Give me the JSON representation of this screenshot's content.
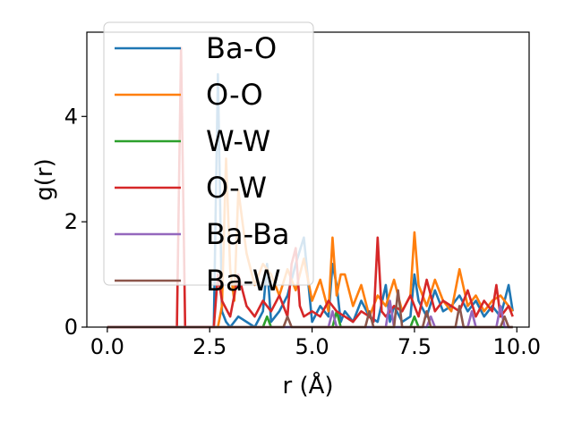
{
  "chart_data": {
    "type": "line",
    "title": "",
    "xlabel": "r (Å)",
    "ylabel": "g(r)",
    "xlim": [
      -0.5,
      10.3
    ],
    "ylim": [
      0,
      5.6
    ],
    "xticks": [
      "0.0",
      "2.5",
      "5.0",
      "7.5",
      "10.0"
    ],
    "xtick_values": [
      0,
      2.5,
      5,
      7.5,
      10
    ],
    "yticks": [
      "0",
      "2",
      "4"
    ],
    "ytick_values": [
      0,
      2,
      4
    ],
    "grid": false,
    "legend_position": "upper-left",
    "series": [
      {
        "name": "Ba-O",
        "color": "#1f77b4",
        "x": [
          0,
          2.5,
          2.6,
          2.7,
          2.8,
          2.9,
          3.0,
          3.2,
          3.4,
          3.6,
          3.8,
          3.9,
          4.0,
          4.1,
          4.2,
          4.4,
          4.6,
          4.8,
          5.0,
          5.2,
          5.4,
          5.5,
          5.6,
          5.7,
          5.8,
          6.0,
          6.2,
          6.4,
          6.6,
          6.8,
          6.9,
          7.0,
          7.2,
          7.4,
          7.5,
          7.6,
          7.8,
          8.0,
          8.2,
          8.4,
          8.6,
          8.8,
          9.0,
          9.2,
          9.4,
          9.6,
          9.8,
          9.9
        ],
        "y": [
          0,
          0,
          0,
          4.8,
          0.3,
          0.1,
          0,
          0.2,
          0.1,
          0,
          0.3,
          1.2,
          0.1,
          0.2,
          0.3,
          0.6,
          1.2,
          1.7,
          0.1,
          0.4,
          0.2,
          1.2,
          0.8,
          0.1,
          0.3,
          0.1,
          0.5,
          0.2,
          0.1,
          0.8,
          0.1,
          0.4,
          0.1,
          0.2,
          1.0,
          0.5,
          0.2,
          0.7,
          0.3,
          0.4,
          0.6,
          0.3,
          0.5,
          0.2,
          0.4,
          0.2,
          0.8,
          0.3
        ]
      },
      {
        "name": "O-O",
        "color": "#ff7f0e",
        "x": [
          0,
          2.7,
          2.8,
          2.9,
          3.0,
          3.1,
          3.2,
          3.4,
          3.6,
          3.8,
          4.0,
          4.2,
          4.4,
          4.6,
          4.8,
          5.0,
          5.2,
          5.4,
          5.5,
          5.6,
          5.7,
          5.8,
          6.0,
          6.2,
          6.4,
          6.6,
          6.8,
          7.0,
          7.2,
          7.4,
          7.5,
          7.6,
          7.8,
          8.0,
          8.2,
          8.4,
          8.6,
          8.8,
          9.0,
          9.2,
          9.4,
          9.6,
          9.8,
          9.9
        ],
        "y": [
          0,
          0,
          0.4,
          3.2,
          1.1,
          0.5,
          2.6,
          1.4,
          0.8,
          1.2,
          1.0,
          0.6,
          1.1,
          0.7,
          1.3,
          0.5,
          0.9,
          0.3,
          1.7,
          0.6,
          1.0,
          1.0,
          0.4,
          0.8,
          0.2,
          0.6,
          0.4,
          0.9,
          0.3,
          0.6,
          1.8,
          0.8,
          0.4,
          0.9,
          0.5,
          0.3,
          1.1,
          0.4,
          0.6,
          0.3,
          0.5,
          0.6,
          0.4,
          0.3
        ]
      },
      {
        "name": "W-W",
        "color": "#2ca02c",
        "x": [
          0,
          3.8,
          3.9,
          4.0,
          5.5,
          5.6,
          5.7,
          7.4,
          7.5,
          7.6,
          9.9
        ],
        "y": [
          0,
          0,
          0.2,
          0,
          0,
          0.3,
          0,
          0,
          0.2,
          0,
          0
        ]
      },
      {
        "name": "O-W",
        "color": "#d62728",
        "x": [
          0,
          1.7,
          1.8,
          1.9,
          2.6,
          2.7,
          2.8,
          3.0,
          3.2,
          3.4,
          3.6,
          3.8,
          4.0,
          4.2,
          4.4,
          4.5,
          4.6,
          4.7,
          4.8,
          5.0,
          5.2,
          5.4,
          5.6,
          5.8,
          6.0,
          6.2,
          6.4,
          6.5,
          6.6,
          6.7,
          6.8,
          7.0,
          7.2,
          7.4,
          7.6,
          7.8,
          8.0,
          8.2,
          8.4,
          8.6,
          8.8,
          9.0,
          9.2,
          9.4,
          9.5,
          9.6,
          9.8,
          9.9
        ],
        "y": [
          0,
          0,
          5.3,
          0,
          0,
          1.0,
          0.5,
          0.2,
          1.0,
          0.4,
          0.2,
          0.5,
          0.3,
          0.6,
          0.2,
          1.2,
          1.5,
          0.4,
          0.2,
          0.3,
          0.2,
          0.5,
          0.3,
          0.2,
          0.1,
          0.3,
          0.2,
          0.1,
          1.7,
          0.3,
          0.2,
          0.4,
          0.3,
          0.6,
          0.2,
          0.9,
          0.3,
          0.5,
          0.4,
          0.3,
          0.7,
          0.2,
          0.5,
          0.3,
          0.8,
          0.2,
          0.4,
          0.2
        ]
      },
      {
        "name": "Ba-Ba",
        "color": "#9467bd",
        "x": [
          0,
          5.4,
          5.5,
          5.6,
          6.8,
          6.9,
          7.0,
          7.8,
          7.9,
          8.0,
          8.8,
          8.9,
          9.0,
          9.5,
          9.6,
          9.7,
          9.9
        ],
        "y": [
          0,
          0,
          0.3,
          0,
          0,
          0.5,
          0,
          0,
          0.2,
          0,
          0,
          0.3,
          0,
          0,
          0.4,
          0,
          0
        ]
      },
      {
        "name": "Ba-W",
        "color": "#8c564b",
        "x": [
          0,
          4.3,
          4.4,
          4.5,
          6.3,
          6.4,
          6.5,
          7.0,
          7.1,
          7.2,
          7.7,
          7.8,
          7.9,
          8.5,
          8.6,
          8.7,
          9.6,
          9.7,
          9.8,
          9.9
        ],
        "y": [
          0,
          0,
          0.2,
          0,
          0,
          0.3,
          0,
          0,
          0.7,
          0,
          0,
          0.3,
          0,
          0,
          0.4,
          0,
          0,
          0.2,
          0,
          0
        ]
      }
    ]
  }
}
